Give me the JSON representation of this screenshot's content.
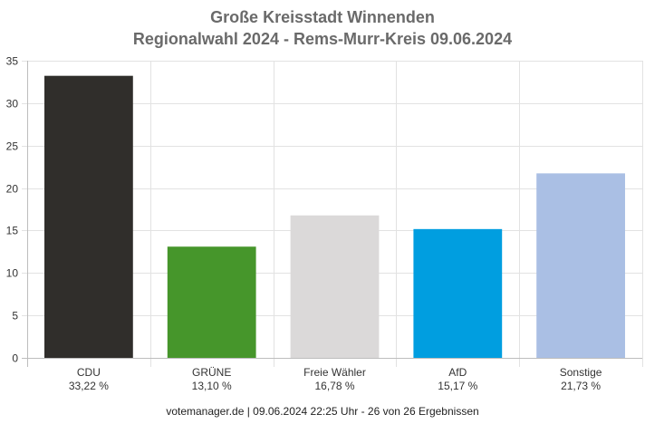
{
  "chart_data": {
    "type": "bar",
    "title": "Große Kreisstadt Winnenden",
    "subtitle": "Regionalwahl 2024 - Rems-Murr-Kreis 09.06.2024",
    "categories": [
      "CDU",
      "GRÜNE",
      "Freie Wähler",
      "AfD",
      "Sonstige"
    ],
    "values": [
      33.22,
      13.1,
      16.78,
      15.17,
      21.73
    ],
    "value_labels": [
      "33,22 %",
      "13,10 %",
      "16,78 %",
      "15,17 %",
      "21,73 %"
    ],
    "colors": [
      "#302e2b",
      "#46962b",
      "#dbd9d9",
      "#009ee0",
      "#aabfe4"
    ],
    "yticks": [
      0,
      5,
      10,
      15,
      20,
      25,
      30,
      35
    ],
    "ylim": [
      0,
      35
    ],
    "grid": true,
    "xlabel": "",
    "ylabel": ""
  },
  "footer": "votemanager.de | 09.06.2024 22:25 Uhr - 26 von 26 Ergebnissen"
}
